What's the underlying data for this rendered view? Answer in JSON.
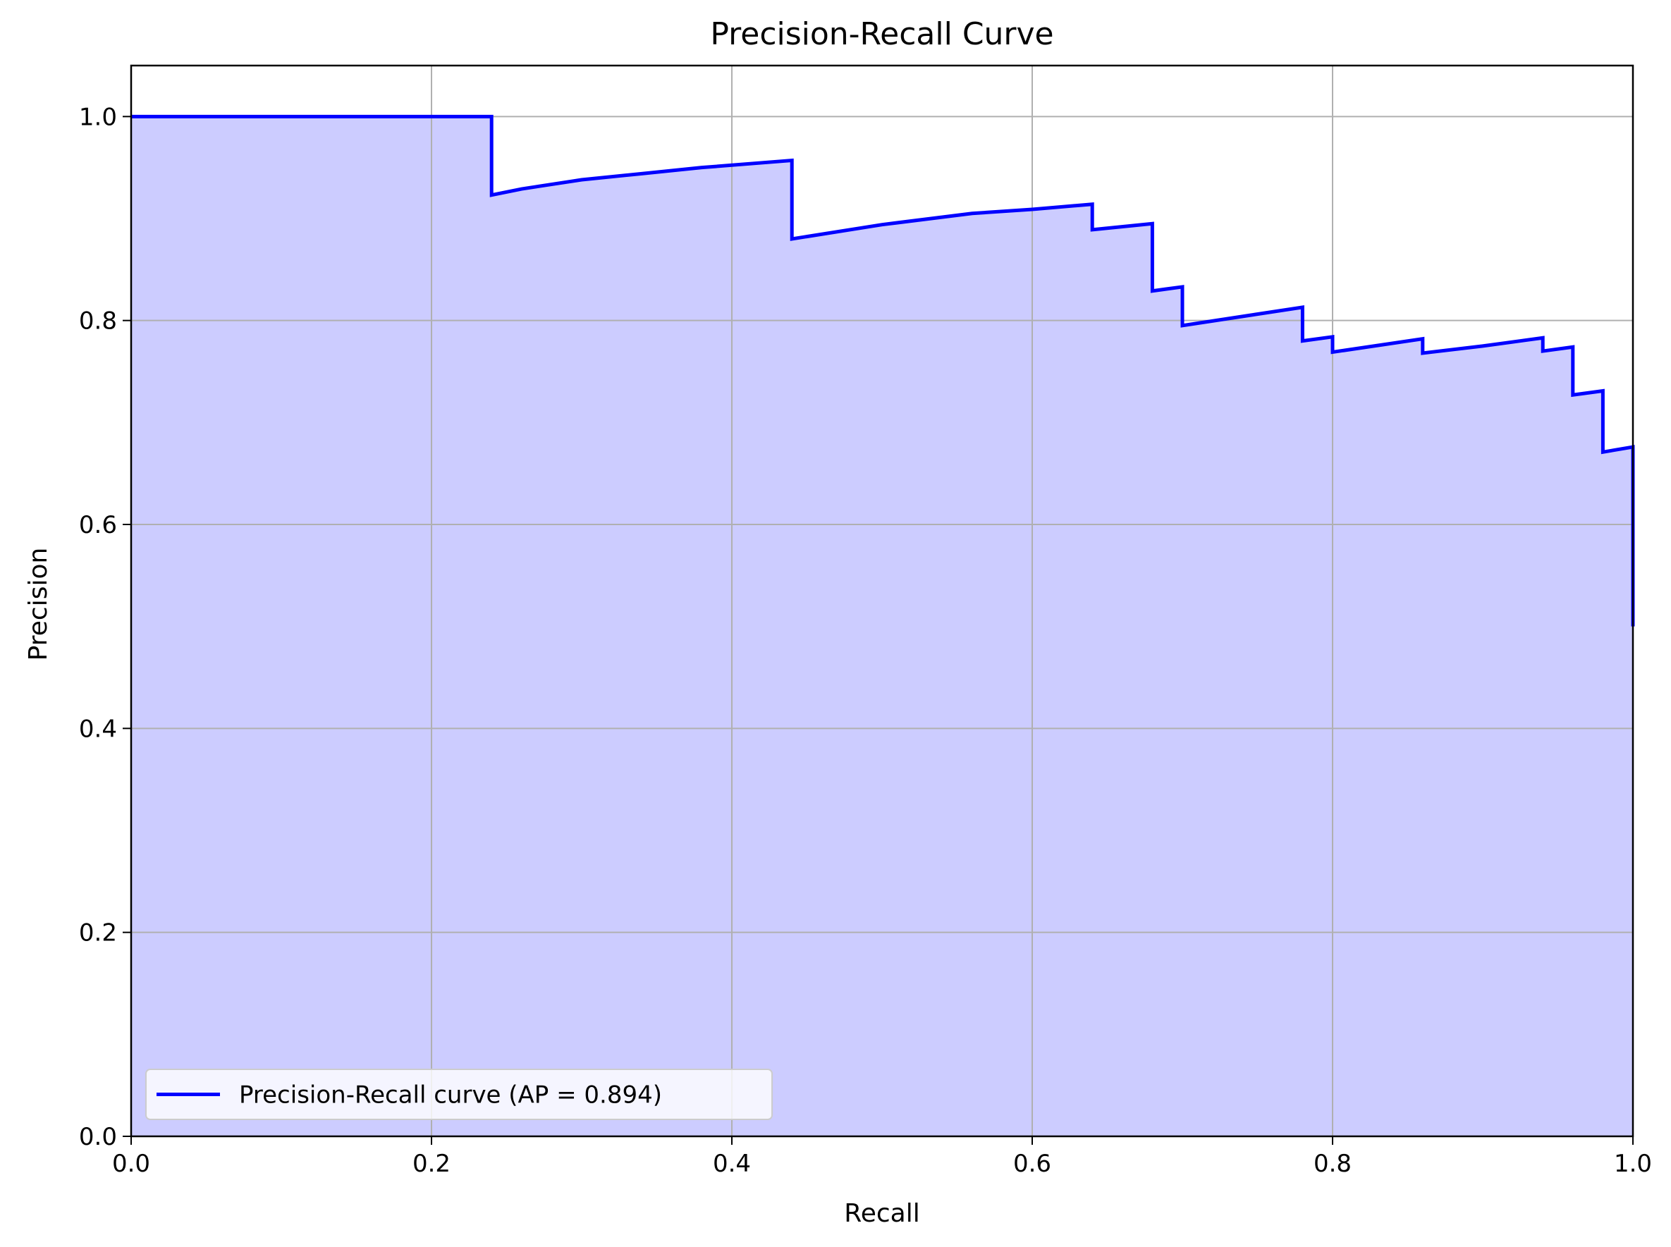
{
  "chart_data": {
    "type": "area",
    "title": "Precision-Recall Curve",
    "xlabel": "Recall",
    "ylabel": "Precision",
    "xlim": [
      0.0,
      1.0
    ],
    "ylim": [
      0.0,
      1.05
    ],
    "grid": true,
    "xticks": [
      0.0,
      0.2,
      0.4,
      0.6,
      0.8,
      1.0
    ],
    "yticks": [
      0.0,
      0.2,
      0.4,
      0.6,
      0.8,
      1.0
    ],
    "xtick_labels": [
      "0.0",
      "0.2",
      "0.4",
      "0.6",
      "0.8",
      "1.0"
    ],
    "ytick_labels": [
      "0.0",
      "0.2",
      "0.4",
      "0.6",
      "0.8",
      "1.0"
    ],
    "legend": {
      "placement": "lower-left",
      "entries": [
        "Precision-Recall curve (AP = 0.894)"
      ]
    },
    "series": [
      {
        "name": "Precision-Recall curve (AP = 0.894)",
        "color": "#0000ff",
        "fill_color": "#ccccff",
        "x": [
          0.0,
          0.24,
          0.24,
          0.26,
          0.3,
          0.34,
          0.38,
          0.44,
          0.44,
          0.5,
          0.56,
          0.6,
          0.64,
          0.64,
          0.68,
          0.68,
          0.7,
          0.7,
          0.74,
          0.78,
          0.78,
          0.8,
          0.8,
          0.86,
          0.86,
          0.9,
          0.94,
          0.94,
          0.96,
          0.96,
          0.98,
          0.98,
          1.0,
          1.0
        ],
        "y": [
          1.0,
          1.0,
          0.923,
          0.929,
          0.938,
          0.944,
          0.95,
          0.957,
          0.88,
          0.894,
          0.905,
          0.909,
          0.914,
          0.889,
          0.895,
          0.829,
          0.833,
          0.795,
          0.804,
          0.813,
          0.78,
          0.784,
          0.769,
          0.782,
          0.768,
          0.775,
          0.783,
          0.77,
          0.774,
          0.727,
          0.731,
          0.671,
          0.676,
          0.5
        ]
      }
    ]
  }
}
